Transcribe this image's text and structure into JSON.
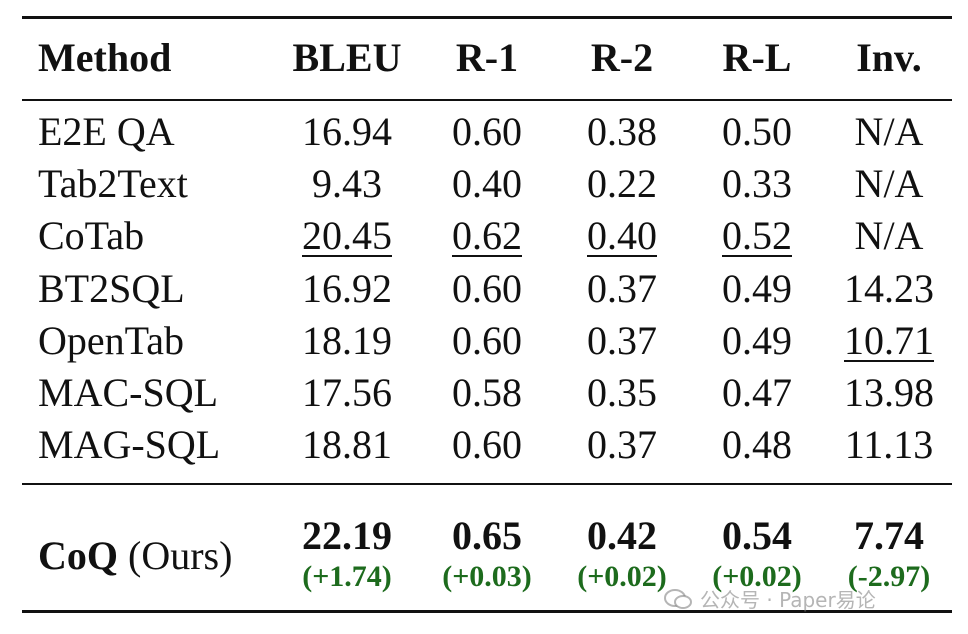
{
  "table": {
    "header": [
      "Method",
      "BLEU",
      "R-1",
      "R-2",
      "R-L",
      "Inv."
    ],
    "rows": [
      [
        "E2E QA",
        "16.94",
        "0.60",
        "0.38",
        "0.50",
        "N/A"
      ],
      [
        "Tab2Text",
        "9.43",
        "0.40",
        "0.22",
        "0.33",
        "N/A"
      ],
      [
        "CoTab",
        "20.45",
        "0.62",
        "0.40",
        "0.52",
        "N/A"
      ],
      [
        "BT2SQL",
        "16.92",
        "0.60",
        "0.37",
        "0.49",
        "14.23"
      ],
      [
        "OpenTab",
        "18.19",
        "0.60",
        "0.37",
        "0.49",
        "10.71"
      ],
      [
        "MAC-SQL",
        "17.56",
        "0.58",
        "0.35",
        "0.47",
        "13.98"
      ],
      [
        "MAG-SQL",
        "18.81",
        "0.60",
        "0.37",
        "0.48",
        "11.13"
      ]
    ],
    "ours": {
      "method": "CoQ",
      "suffix": "(Ours)",
      "values": [
        "22.19",
        "0.65",
        "0.42",
        "0.54",
        "7.74"
      ],
      "deltas": [
        "(+1.74)",
        "(+0.03)",
        "(+0.02)",
        "(+0.02)",
        "(-2.97)"
      ]
    }
  },
  "watermark": "公众号 · Paper易论"
}
